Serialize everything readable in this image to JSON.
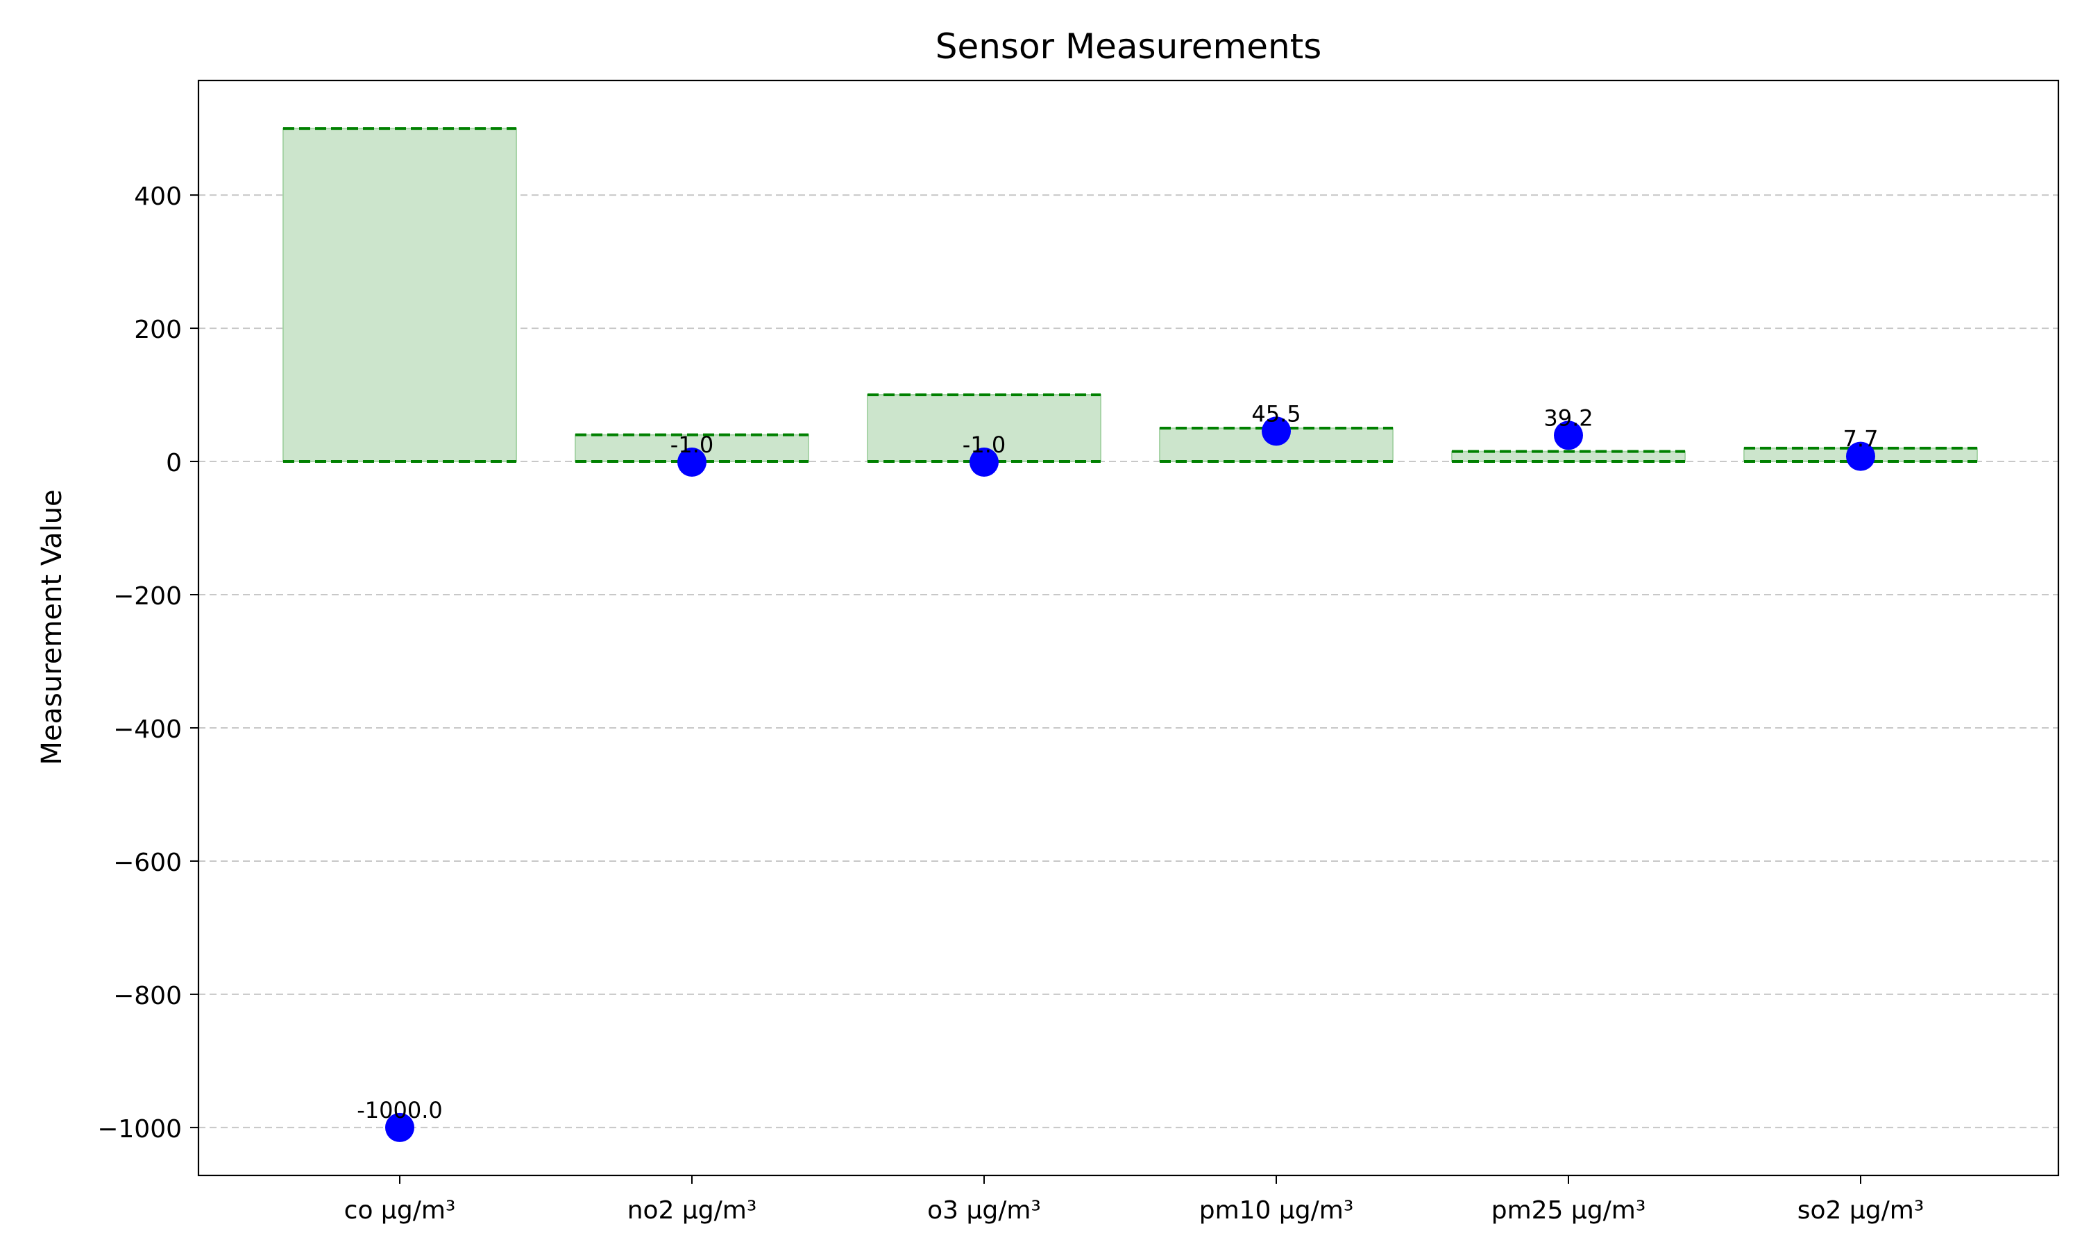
{
  "chart_data": {
    "type": "scatter",
    "title": "Sensor Measurements",
    "xlabel": "",
    "ylabel": "Measurement Value",
    "categories": [
      "co µg/m³",
      "no2 µg/m³",
      "o3 µg/m³",
      "pm10 µg/m³",
      "pm25 µg/m³",
      "so2 µg/m³"
    ],
    "values": [
      -1000.0,
      -1.0,
      -1.0,
      45.5,
      39.2,
      7.7
    ],
    "value_labels": [
      "-1000.0",
      "-1.0",
      "-1.0",
      "45.5",
      "39.2",
      "7.7"
    ],
    "ranges": [
      {
        "low": 0,
        "high": 500
      },
      {
        "low": 0,
        "high": 40
      },
      {
        "low": 0,
        "high": 100
      },
      {
        "low": 0,
        "high": 50
      },
      {
        "low": 0,
        "high": 15
      },
      {
        "low": 0,
        "high": 20
      }
    ],
    "ylim": [
      -1072,
      572
    ],
    "yticks": [
      -1000,
      -800,
      -600,
      -400,
      -200,
      0,
      200,
      400
    ],
    "ytick_labels": [
      "−1000",
      "−800",
      "−600",
      "−400",
      "−200",
      "0",
      "200",
      "400"
    ],
    "grid": {
      "y": true,
      "x": false,
      "style": "dashed"
    },
    "colors": {
      "point": "#0000ff",
      "range_fill": "#cce5cc",
      "range_edge": "#a8d4a8",
      "range_line": "#008000",
      "grid": "#c8c8c8"
    }
  }
}
